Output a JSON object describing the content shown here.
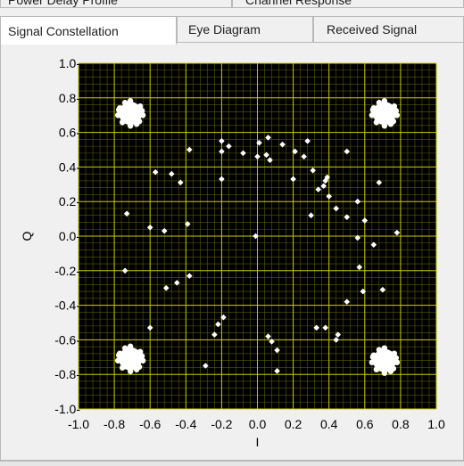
{
  "tabs_top": [
    {
      "label": "Power Delay Profile"
    },
    {
      "label": "Channel Response"
    }
  ],
  "tabs": [
    {
      "label": "Signal Constellation",
      "active": true
    },
    {
      "label": "Eye Diagram",
      "active": false
    },
    {
      "label": "Received Signal",
      "active": false
    }
  ],
  "colors": {
    "plot_background": "#000000",
    "grid_major": "#c8c800",
    "grid_minor": "#5a5a00",
    "points": "#ffffff"
  },
  "chart_data": {
    "type": "scatter",
    "xlabel": "I",
    "ylabel": "Q",
    "xlim": [
      -1.0,
      1.0
    ],
    "ylim": [
      -1.0,
      1.0
    ],
    "grid": true,
    "x_ticks": [
      "-1.0",
      "-0.8",
      "-0.6",
      "-0.4",
      "-0.2",
      "0.0",
      "0.2",
      "0.4",
      "0.6",
      "0.8",
      "1.0"
    ],
    "y_ticks": [
      "1.0-",
      "0.8-",
      "0.6-",
      "0.4-",
      "0.2-",
      "0.0-",
      "-0.2-",
      "-0.4-",
      "-0.6-",
      "-0.8-",
      "-1.0-"
    ],
    "clusters": [
      {
        "x": -0.71,
        "y": 0.71
      },
      {
        "x": 0.71,
        "y": 0.71
      },
      {
        "x": -0.71,
        "y": -0.71
      },
      {
        "x": 0.71,
        "y": -0.72
      }
    ],
    "points": [
      [
        -0.16,
        0.52
      ],
      [
        -0.2,
        0.55
      ],
      [
        -0.2,
        0.49
      ],
      [
        -0.38,
        0.5
      ],
      [
        -0.57,
        0.37
      ],
      [
        -0.48,
        0.36
      ],
      [
        -0.43,
        0.31
      ],
      [
        -0.2,
        0.33
      ],
      [
        -0.73,
        0.13
      ],
      [
        -0.6,
        0.05
      ],
      [
        -0.52,
        0.03
      ],
      [
        -0.39,
        0.07
      ],
      [
        -0.74,
        -0.2
      ],
      [
        -0.51,
        -0.3
      ],
      [
        -0.45,
        -0.27
      ],
      [
        -0.38,
        -0.23
      ],
      [
        -0.6,
        -0.53
      ],
      [
        -0.19,
        -0.47
      ],
      [
        -0.22,
        -0.51
      ],
      [
        -0.24,
        -0.57
      ],
      [
        -0.29,
        -0.75
      ],
      [
        -0.01,
        0.0
      ],
      [
        -0.08,
        0.48
      ],
      [
        0.0,
        0.46
      ],
      [
        0.05,
        0.47
      ],
      [
        0.07,
        0.44
      ],
      [
        0.01,
        0.54
      ],
      [
        0.06,
        0.57
      ],
      [
        0.14,
        0.53
      ],
      [
        0.21,
        0.49
      ],
      [
        0.26,
        0.46
      ],
      [
        0.28,
        0.55
      ],
      [
        0.31,
        0.38
      ],
      [
        0.2,
        0.33
      ],
      [
        0.34,
        0.27
      ],
      [
        0.37,
        0.29
      ],
      [
        0.39,
        0.34
      ],
      [
        0.38,
        0.32
      ],
      [
        0.4,
        0.23
      ],
      [
        0.44,
        0.16
      ],
      [
        0.5,
        0.11
      ],
      [
        0.5,
        0.49
      ],
      [
        0.3,
        0.12
      ],
      [
        0.56,
        0.2
      ],
      [
        0.6,
        0.09
      ],
      [
        0.56,
        -0.01
      ],
      [
        0.65,
        -0.05
      ],
      [
        0.68,
        0.31
      ],
      [
        0.78,
        0.02
      ],
      [
        0.57,
        -0.18
      ],
      [
        0.59,
        -0.32
      ],
      [
        0.7,
        -0.31
      ],
      [
        0.5,
        -0.38
      ],
      [
        0.33,
        -0.53
      ],
      [
        0.38,
        -0.53
      ],
      [
        0.45,
        -0.57
      ],
      [
        0.44,
        -0.6
      ],
      [
        0.06,
        -0.58
      ],
      [
        0.08,
        -0.61
      ],
      [
        0.11,
        -0.66
      ],
      [
        0.11,
        -0.78
      ]
    ]
  }
}
